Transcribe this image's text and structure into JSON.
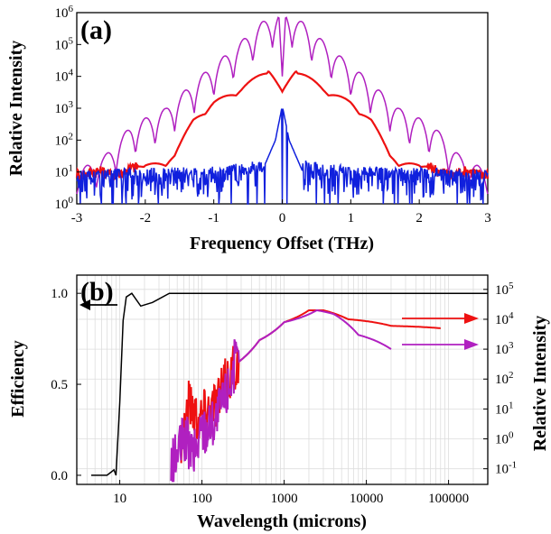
{
  "chart_data": [
    {
      "type": "line",
      "panel_label": "(a)",
      "xlabel": "Frequency Offset (THz)",
      "ylabel": "Relative Intensity",
      "xlim": [
        -3,
        3
      ],
      "ylim": [
        1,
        1000000
      ],
      "yscale": "log",
      "x_ticks": [
        "-3",
        "-2",
        "-1",
        "0",
        "1",
        "2",
        "3"
      ],
      "y_ticks": [
        {
          "base": "10",
          "exp": "0"
        },
        {
          "base": "10",
          "exp": "1"
        },
        {
          "base": "10",
          "exp": "2"
        },
        {
          "base": "10",
          "exp": "3"
        },
        {
          "base": "10",
          "exp": "4"
        },
        {
          "base": "10",
          "exp": "5"
        },
        {
          "base": "10",
          "exp": "6"
        }
      ],
      "series": [
        {
          "color": "#b020c0",
          "x": [
            -3,
            -2.6,
            -2.2,
            -1.7,
            -1.2,
            -0.7,
            -0.3,
            -0.05,
            0,
            0.05,
            0.3,
            0.7,
            1.2,
            1.7,
            2.2,
            2.6,
            3
          ],
          "y": [
            10,
            30,
            300,
            1000,
            10000,
            80000,
            500000,
            1000000,
            10000,
            1000000,
            500000,
            80000,
            10000,
            1000,
            300,
            30,
            10
          ]
        },
        {
          "color": "#ee1111",
          "x": [
            -3,
            -2.3,
            -2.0,
            -1.7,
            -1.3,
            -1.0,
            -0.6,
            -0.2,
            0,
            0.2,
            0.6,
            1.0,
            1.3,
            1.7,
            2.0,
            2.3,
            3
          ],
          "y": [
            10,
            10,
            20,
            15,
            400,
            1500,
            4000,
            18000,
            3000,
            18000,
            4000,
            1500,
            400,
            15,
            20,
            10,
            10
          ]
        },
        {
          "color": "#1020dd",
          "x": [
            -3,
            -1,
            -0.3,
            -0.1,
            0,
            0.1,
            0.3,
            1,
            3
          ],
          "y": [
            5,
            6,
            10,
            100,
            1200,
            100,
            10,
            6,
            5
          ]
        }
      ]
    },
    {
      "type": "line",
      "panel_label": "(b)",
      "xlabel": "Wavelength (microns)",
      "ylabel_left": "Efficiency",
      "ylabel_right": "Relative Intensity",
      "xscale": "log",
      "xlim": [
        3,
        300000
      ],
      "ylim_left": [
        -0.05,
        1.1
      ],
      "ylim_right": [
        0.03,
        300000
      ],
      "x_ticks": [
        "10",
        "100",
        "1000",
        "10000",
        "100000"
      ],
      "y_ticks_left": [
        "0.0",
        "0.5",
        "1.0"
      ],
      "y_ticks_right": [
        {
          "base": "10",
          "exp": "-1"
        },
        {
          "base": "10",
          "exp": "0"
        },
        {
          "base": "10",
          "exp": "1"
        },
        {
          "base": "10",
          "exp": "2"
        },
        {
          "base": "10",
          "exp": "3"
        },
        {
          "base": "10",
          "exp": "4"
        },
        {
          "base": "10",
          "exp": "5"
        }
      ],
      "series": [
        {
          "color": "#000000",
          "axis": "left",
          "x": [
            4.5,
            7,
            8.5,
            9,
            10,
            11,
            12,
            14,
            18,
            25,
            40,
            100,
            1000,
            300000
          ],
          "y": [
            0.0,
            0.0,
            0.03,
            0.0,
            0.4,
            0.85,
            0.98,
            1.0,
            0.93,
            0.95,
            1.0,
            1.0,
            1.0,
            1.0
          ]
        },
        {
          "color": "#ee1111",
          "axis": "right",
          "x": [
            55,
            70,
            90,
            110,
            150,
            250,
            500,
            1000,
            2000,
            3000,
            6000,
            20000,
            80000
          ],
          "y": [
            1,
            20,
            5,
            10,
            20,
            300,
            2000,
            8000,
            20000,
            20000,
            10000,
            6000,
            5000
          ]
        },
        {
          "color": "#b020c0",
          "axis": "right",
          "x": [
            42,
            60,
            80,
            100,
            150,
            250,
            500,
            1000,
            2500,
            4000,
            8000,
            20000
          ],
          "y": [
            0.1,
            1,
            0.3,
            2,
            5,
            300,
            2000,
            8000,
            20000,
            15000,
            3000,
            1000
          ]
        }
      ]
    }
  ]
}
